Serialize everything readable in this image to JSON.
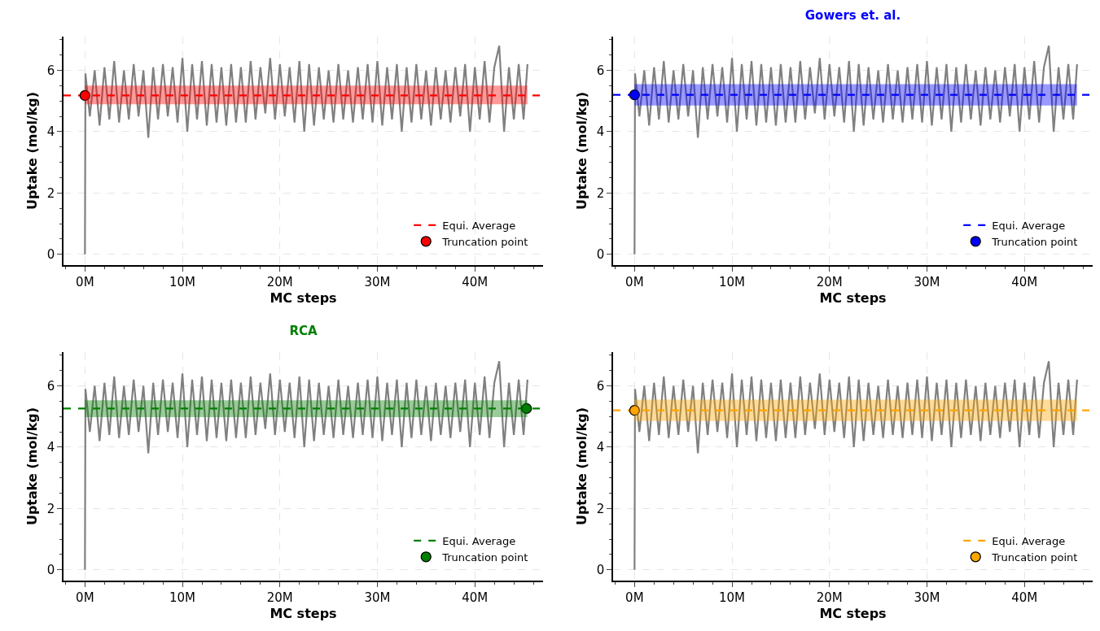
{
  "chart_data": [
    {
      "type": "line",
      "xlabel": "MC steps",
      "ylabel": "Uptake (mol/kg)",
      "xlim": [
        -2.2,
        47.0
      ],
      "xticks": [
        {
          "value": 0,
          "label": "0M"
        },
        {
          "value": 10,
          "label": "10M"
        },
        {
          "value": 20,
          "label": "20M"
        },
        {
          "value": 30,
          "label": "30M"
        },
        {
          "value": 40,
          "label": "40M"
        }
      ],
      "ylim": [
        -0.35,
        7.1
      ],
      "yticks": [
        0,
        2,
        4,
        6
      ],
      "grid": true,
      "legend": "bottom right",
      "series": [
        {
          "color": "#808080",
          "x": [
            0,
            0.05,
            0.5,
            1,
            1.5,
            2,
            2.5,
            3,
            3.5,
            4,
            4.5,
            5,
            5.5,
            6,
            6.5,
            7,
            7.5,
            8,
            8.5,
            9,
            9.5,
            10,
            10.5,
            11,
            11.5,
            12,
            12.5,
            13,
            13.5,
            14,
            14.5,
            15,
            15.5,
            16,
            16.5,
            17,
            17.5,
            18,
            18.5,
            19,
            19.5,
            20,
            20.5,
            21,
            21.5,
            22,
            22.5,
            23,
            23.5,
            24,
            24.5,
            25,
            25.5,
            26,
            26.5,
            27,
            27.5,
            28,
            28.5,
            29,
            29.5,
            30,
            30.5,
            31,
            31.5,
            32,
            32.5,
            33,
            33.5,
            34,
            34.5,
            35,
            35.5,
            36,
            36.5,
            37,
            37.5,
            38,
            38.5,
            39,
            39.5,
            40,
            40.5,
            41,
            41.5,
            42,
            42.5,
            43,
            43.5,
            44,
            44.5,
            45,
            45.4
          ],
          "values": [
            0,
            5.9,
            4.5,
            6.0,
            4.2,
            6.1,
            4.4,
            6.3,
            4.3,
            6.0,
            4.4,
            6.2,
            4.5,
            6.0,
            3.8,
            6.1,
            4.4,
            6.2,
            4.5,
            6.1,
            4.3,
            6.4,
            4.0,
            6.2,
            4.4,
            6.3,
            4.2,
            6.2,
            4.3,
            6.1,
            4.2,
            6.2,
            4.3,
            6.1,
            4.3,
            6.3,
            4.4,
            6.1,
            4.6,
            6.4,
            4.4,
            6.2,
            4.5,
            6.1,
            4.3,
            6.3,
            4.0,
            6.2,
            4.2,
            6.1,
            4.4,
            6.0,
            4.3,
            6.2,
            4.4,
            6.0,
            4.3,
            6.1,
            4.4,
            6.2,
            4.3,
            6.3,
            4.2,
            6.1,
            4.4,
            6.2,
            4.0,
            6.1,
            4.3,
            6.2,
            4.4,
            6.0,
            4.2,
            6.1,
            4.4,
            6.0,
            4.3,
            6.1,
            4.5,
            6.2,
            4.0,
            6.1,
            4.4,
            6.3,
            4.3,
            6.1,
            6.8,
            4.0,
            6.1,
            4.4,
            6.2,
            4.4,
            6.2
          ]
        },
        {
          "name": "Truncation point",
          "type": "scatter",
          "marker": "circle",
          "color": "#ff0000",
          "x": [
            0
          ],
          "values": [
            5.18
          ]
        }
      ],
      "ref_lines": [
        {
          "axis": "y",
          "value": 5.18,
          "label": "Equi. Average",
          "color": "#ff0000",
          "line_style": "dashed"
        }
      ],
      "bands": [
        {
          "axis": "y",
          "from": 4.89,
          "to": 5.5,
          "color": "#ff0000"
        }
      ]
    },
    {
      "type": "line",
      "title": "Gowers et. al.",
      "xlabel": "MC steps",
      "ylabel": "Uptake (mol/kg)",
      "xlim": [
        -2.2,
        47.0
      ],
      "xticks": [
        {
          "value": 0,
          "label": "0M"
        },
        {
          "value": 10,
          "label": "10M"
        },
        {
          "value": 20,
          "label": "20M"
        },
        {
          "value": 30,
          "label": "30M"
        },
        {
          "value": 40,
          "label": "40M"
        }
      ],
      "ylim": [
        -0.35,
        7.1
      ],
      "yticks": [
        0,
        2,
        4,
        6
      ],
      "grid": true,
      "legend": "bottom right",
      "series": [
        {
          "color": "#808080",
          "x": [
            0,
            0.05,
            0.5,
            1,
            1.5,
            2,
            2.5,
            3,
            3.5,
            4,
            4.5,
            5,
            5.5,
            6,
            6.5,
            7,
            7.5,
            8,
            8.5,
            9,
            9.5,
            10,
            10.5,
            11,
            11.5,
            12,
            12.5,
            13,
            13.5,
            14,
            14.5,
            15,
            15.5,
            16,
            16.5,
            17,
            17.5,
            18,
            18.5,
            19,
            19.5,
            20,
            20.5,
            21,
            21.5,
            22,
            22.5,
            23,
            23.5,
            24,
            24.5,
            25,
            25.5,
            26,
            26.5,
            27,
            27.5,
            28,
            28.5,
            29,
            29.5,
            30,
            30.5,
            31,
            31.5,
            32,
            32.5,
            33,
            33.5,
            34,
            34.5,
            35,
            35.5,
            36,
            36.5,
            37,
            37.5,
            38,
            38.5,
            39,
            39.5,
            40,
            40.5,
            41,
            41.5,
            42,
            42.5,
            43,
            43.5,
            44,
            44.5,
            45,
            45.4
          ],
          "values": [
            0,
            5.9,
            4.5,
            6.0,
            4.2,
            6.1,
            4.4,
            6.3,
            4.3,
            6.0,
            4.4,
            6.2,
            4.5,
            6.0,
            3.8,
            6.1,
            4.4,
            6.2,
            4.5,
            6.1,
            4.3,
            6.4,
            4.0,
            6.2,
            4.4,
            6.3,
            4.2,
            6.2,
            4.3,
            6.1,
            4.2,
            6.2,
            4.3,
            6.1,
            4.3,
            6.3,
            4.4,
            6.1,
            4.6,
            6.4,
            4.4,
            6.2,
            4.5,
            6.1,
            4.3,
            6.3,
            4.0,
            6.2,
            4.2,
            6.1,
            4.4,
            6.0,
            4.3,
            6.2,
            4.4,
            6.0,
            4.3,
            6.1,
            4.4,
            6.2,
            4.3,
            6.3,
            4.2,
            6.1,
            4.4,
            6.2,
            4.0,
            6.1,
            4.3,
            6.2,
            4.4,
            6.0,
            4.2,
            6.1,
            4.4,
            6.0,
            4.3,
            6.1,
            4.5,
            6.2,
            4.0,
            6.1,
            4.4,
            6.3,
            4.3,
            6.1,
            6.8,
            4.0,
            6.1,
            4.4,
            6.2,
            4.4,
            6.2
          ]
        },
        {
          "name": "Truncation point",
          "type": "scatter",
          "marker": "circle",
          "color": "#0000ff",
          "x": [
            0
          ],
          "values": [
            5.2
          ]
        }
      ],
      "ref_lines": [
        {
          "axis": "y",
          "value": 5.2,
          "label": "Equi. Average",
          "color": "#0000ff",
          "line_style": "dashed"
        }
      ],
      "bands": [
        {
          "axis": "y",
          "from": 4.85,
          "to": 5.55,
          "color": "#0000ff"
        }
      ]
    },
    {
      "type": "line",
      "title": "RCA",
      "xlabel": "MC steps",
      "ylabel": "Uptake (mol/kg)",
      "xlim": [
        -2.2,
        47.0
      ],
      "xticks": [
        {
          "value": 0,
          "label": "0M"
        },
        {
          "value": 10,
          "label": "10M"
        },
        {
          "value": 20,
          "label": "20M"
        },
        {
          "value": 30,
          "label": "30M"
        },
        {
          "value": 40,
          "label": "40M"
        }
      ],
      "ylim": [
        -0.35,
        7.1
      ],
      "yticks": [
        0,
        2,
        4,
        6
      ],
      "grid": true,
      "legend": "bottom right",
      "series": [
        {
          "color": "#808080",
          "x": [
            0,
            0.05,
            0.5,
            1,
            1.5,
            2,
            2.5,
            3,
            3.5,
            4,
            4.5,
            5,
            5.5,
            6,
            6.5,
            7,
            7.5,
            8,
            8.5,
            9,
            9.5,
            10,
            10.5,
            11,
            11.5,
            12,
            12.5,
            13,
            13.5,
            14,
            14.5,
            15,
            15.5,
            16,
            16.5,
            17,
            17.5,
            18,
            18.5,
            19,
            19.5,
            20,
            20.5,
            21,
            21.5,
            22,
            22.5,
            23,
            23.5,
            24,
            24.5,
            25,
            25.5,
            26,
            26.5,
            27,
            27.5,
            28,
            28.5,
            29,
            29.5,
            30,
            30.5,
            31,
            31.5,
            32,
            32.5,
            33,
            33.5,
            34,
            34.5,
            35,
            35.5,
            36,
            36.5,
            37,
            37.5,
            38,
            38.5,
            39,
            39.5,
            40,
            40.5,
            41,
            41.5,
            42,
            42.5,
            43,
            43.5,
            44,
            44.5,
            45,
            45.4
          ],
          "values": [
            0,
            5.9,
            4.5,
            6.0,
            4.2,
            6.1,
            4.4,
            6.3,
            4.3,
            6.0,
            4.4,
            6.2,
            4.5,
            6.0,
            3.8,
            6.1,
            4.4,
            6.2,
            4.5,
            6.1,
            4.3,
            6.4,
            4.0,
            6.2,
            4.4,
            6.3,
            4.2,
            6.2,
            4.3,
            6.1,
            4.2,
            6.2,
            4.3,
            6.1,
            4.3,
            6.3,
            4.4,
            6.1,
            4.6,
            6.4,
            4.4,
            6.2,
            4.5,
            6.1,
            4.3,
            6.3,
            4.0,
            6.2,
            4.2,
            6.1,
            4.4,
            6.0,
            4.3,
            6.2,
            4.4,
            6.0,
            4.3,
            6.1,
            4.4,
            6.2,
            4.3,
            6.3,
            4.2,
            6.1,
            4.4,
            6.2,
            4.0,
            6.1,
            4.3,
            6.2,
            4.4,
            6.0,
            4.2,
            6.1,
            4.4,
            6.0,
            4.3,
            6.1,
            4.5,
            6.2,
            4.0,
            6.1,
            4.4,
            6.3,
            4.3,
            6.1,
            6.8,
            4.0,
            6.1,
            4.4,
            6.2,
            4.4,
            6.2
          ]
        },
        {
          "name": "Truncation point",
          "type": "scatter",
          "marker": "circle",
          "color": "#008000",
          "x": [
            45.3
          ],
          "values": [
            5.26
          ]
        }
      ],
      "ref_lines": [
        {
          "axis": "y",
          "value": 5.26,
          "label": "Equi. Average",
          "color": "#008000",
          "line_style": "dashed"
        }
      ],
      "bands": [
        {
          "axis": "y",
          "from": 4.98,
          "to": 5.53,
          "color": "#008000"
        }
      ]
    },
    {
      "type": "line",
      "xlabel": "MC steps",
      "ylabel": "Uptake (mol/kg)",
      "xlim": [
        -2.2,
        47.0
      ],
      "xticks": [
        {
          "value": 0,
          "label": "0M"
        },
        {
          "value": 10,
          "label": "10M"
        },
        {
          "value": 20,
          "label": "20M"
        },
        {
          "value": 30,
          "label": "30M"
        },
        {
          "value": 40,
          "label": "40M"
        }
      ],
      "ylim": [
        -0.35,
        7.1
      ],
      "yticks": [
        0,
        2,
        4,
        6
      ],
      "grid": true,
      "legend": "bottom right",
      "series": [
        {
          "color": "#808080",
          "x": [
            0,
            0.05,
            0.5,
            1,
            1.5,
            2,
            2.5,
            3,
            3.5,
            4,
            4.5,
            5,
            5.5,
            6,
            6.5,
            7,
            7.5,
            8,
            8.5,
            9,
            9.5,
            10,
            10.5,
            11,
            11.5,
            12,
            12.5,
            13,
            13.5,
            14,
            14.5,
            15,
            15.5,
            16,
            16.5,
            17,
            17.5,
            18,
            18.5,
            19,
            19.5,
            20,
            20.5,
            21,
            21.5,
            22,
            22.5,
            23,
            23.5,
            24,
            24.5,
            25,
            25.5,
            26,
            26.5,
            27,
            27.5,
            28,
            28.5,
            29,
            29.5,
            30,
            30.5,
            31,
            31.5,
            32,
            32.5,
            33,
            33.5,
            34,
            34.5,
            35,
            35.5,
            36,
            36.5,
            37,
            37.5,
            38,
            38.5,
            39,
            39.5,
            40,
            40.5,
            41,
            41.5,
            42,
            42.5,
            43,
            43.5,
            44,
            44.5,
            45,
            45.4
          ],
          "values": [
            0,
            5.9,
            4.5,
            6.0,
            4.2,
            6.1,
            4.4,
            6.3,
            4.3,
            6.0,
            4.4,
            6.2,
            4.5,
            6.0,
            3.8,
            6.1,
            4.4,
            6.2,
            4.5,
            6.1,
            4.3,
            6.4,
            4.0,
            6.2,
            4.4,
            6.3,
            4.2,
            6.2,
            4.3,
            6.1,
            4.2,
            6.2,
            4.3,
            6.1,
            4.3,
            6.3,
            4.4,
            6.1,
            4.6,
            6.4,
            4.4,
            6.2,
            4.5,
            6.1,
            4.3,
            6.3,
            4.0,
            6.2,
            4.2,
            6.1,
            4.4,
            6.0,
            4.3,
            6.2,
            4.4,
            6.0,
            4.3,
            6.1,
            4.4,
            6.2,
            4.3,
            6.3,
            4.2,
            6.1,
            4.4,
            6.2,
            4.0,
            6.1,
            4.3,
            6.2,
            4.4,
            6.0,
            4.2,
            6.1,
            4.4,
            6.0,
            4.3,
            6.1,
            4.5,
            6.2,
            4.0,
            6.1,
            4.4,
            6.3,
            4.3,
            6.1,
            6.8,
            4.0,
            6.1,
            4.4,
            6.2,
            4.4,
            6.2
          ]
        },
        {
          "name": "Truncation point",
          "type": "scatter",
          "marker": "circle",
          "color": "#ffa500",
          "x": [
            0
          ],
          "values": [
            5.2
          ]
        }
      ],
      "ref_lines": [
        {
          "axis": "y",
          "value": 5.2,
          "label": "Equi. Average",
          "color": "#ffa500",
          "line_style": "dashed"
        }
      ],
      "bands": [
        {
          "axis": "y",
          "from": 4.85,
          "to": 5.55,
          "color": "#ffa500"
        }
      ]
    }
  ]
}
